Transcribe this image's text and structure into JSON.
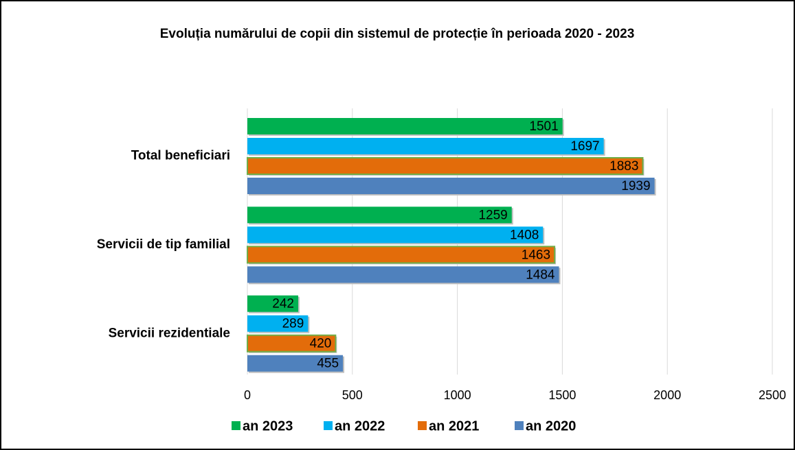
{
  "chart_data": {
    "type": "barh",
    "title": "Evoluția numărului de copii din sistemul de protecție în perioada 2020 - 2023",
    "categories": [
      "Total beneficiari",
      "Servicii de tip familial",
      "Servicii rezidentiale"
    ],
    "series": [
      {
        "name": "an 2023",
        "color": "#00b050",
        "values": [
          1501,
          1259,
          242
        ]
      },
      {
        "name": "an 2022",
        "color": "#00b0f0",
        "values": [
          1697,
          1408,
          289
        ]
      },
      {
        "name": "an 2021",
        "color": "#e36c0a",
        "edgecolor": "#70ad47",
        "values": [
          1883,
          1463,
          420
        ]
      },
      {
        "name": "an 2020",
        "color": "#4f81bd",
        "values": [
          1939,
          1484,
          455
        ]
      }
    ],
    "xlim": [
      0,
      2500
    ],
    "xticks": [
      0,
      500,
      1000,
      1500,
      2000,
      2500
    ],
    "grid": true,
    "legend": "bottom"
  }
}
